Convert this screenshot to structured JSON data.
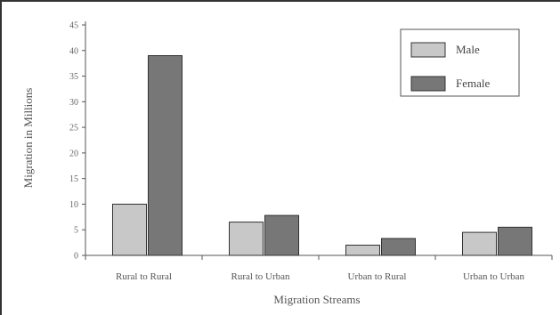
{
  "chart_data": {
    "type": "bar",
    "title": "",
    "xlabel": "Migration Streams",
    "ylabel": "Migration in Millions",
    "categories": [
      "Rural to Rural",
      "Rural to Urban",
      "Urban to Rural",
      "Urban to Urban"
    ],
    "series": [
      {
        "name": "Male",
        "values": [
          10,
          6.5,
          2,
          4.5
        ],
        "color": "#c8c8c8"
      },
      {
        "name": "Female",
        "values": [
          39,
          7.8,
          3.3,
          5.5
        ],
        "color": "#777777"
      }
    ],
    "ylim": [
      0,
      45
    ],
    "yticks": [
      0,
      5,
      10,
      15,
      20,
      25,
      30,
      35,
      40,
      45
    ],
    "grid": false,
    "legend": "top-right"
  }
}
